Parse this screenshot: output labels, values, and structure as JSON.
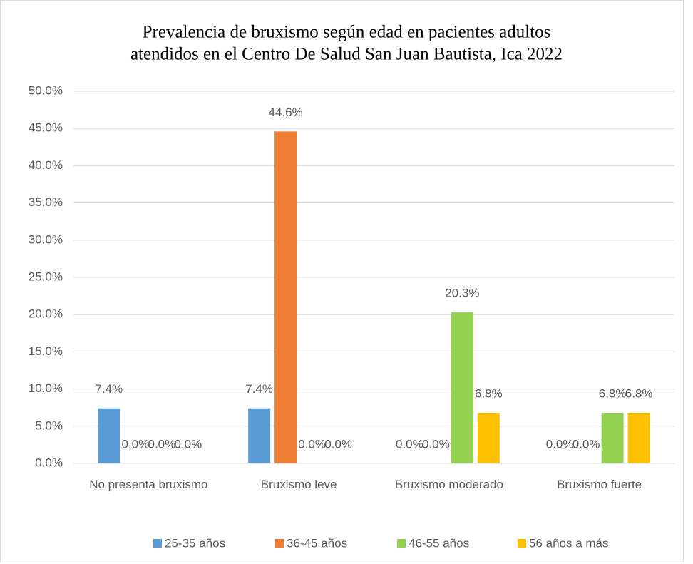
{
  "chart_data": {
    "type": "bar",
    "title": [
      "Prevalencia de bruxismo según edad en pacientes adultos",
      "atendidos en el Centro De Salud San Juan Bautista, Ica 2022"
    ],
    "categories": [
      "No presenta bruxismo",
      "Bruxismo leve",
      "Bruxismo moderado",
      "Bruxismo fuerte"
    ],
    "series": [
      {
        "name": "25-35 años",
        "color": "#5b9bd5",
        "values": [
          7.4,
          7.4,
          0,
          0
        ],
        "value_labels": [
          "7.4%",
          "7.4%",
          "0.0%",
          "0.0%"
        ]
      },
      {
        "name": "36-45 años",
        "color": "#ed7d31",
        "values": [
          0,
          44.6,
          0,
          0
        ],
        "value_labels": [
          "0.0%",
          "44.6%",
          "0.0%",
          "0.0%"
        ]
      },
      {
        "name": "46-55 años",
        "color": "#92d050",
        "values": [
          0,
          0,
          20.3,
          6.8
        ],
        "value_labels": [
          "0.0%",
          "0.0%",
          "20.3%",
          "6.8%"
        ]
      },
      {
        "name": "56 años a más",
        "color": "#ffc000",
        "values": [
          0,
          0,
          6.8,
          6.8
        ],
        "value_labels": [
          "0.0%",
          "0.0%",
          "6.8%",
          "6.8%"
        ]
      }
    ],
    "ylim": [
      0,
      50
    ],
    "yticks": [
      {
        "value": 0,
        "label": "0.0%"
      },
      {
        "value": 5,
        "label": "5.0%"
      },
      {
        "value": 10,
        "label": "10.0%"
      },
      {
        "value": 15,
        "label": "15.0%"
      },
      {
        "value": 20,
        "label": "20.0%"
      },
      {
        "value": 25,
        "label": "25.0%"
      },
      {
        "value": 30,
        "label": "30.0%"
      },
      {
        "value": 35,
        "label": "35.0%"
      },
      {
        "value": 40,
        "label": "40.0%"
      },
      {
        "value": 45,
        "label": "45.0%"
      },
      {
        "value": 50,
        "label": "50.0%"
      }
    ],
    "grid": true,
    "legend": "bottom"
  }
}
